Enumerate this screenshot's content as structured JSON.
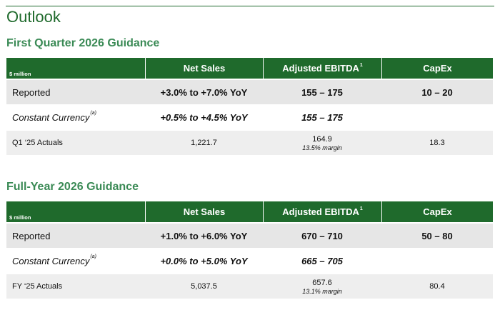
{
  "page": {
    "title": "Outlook"
  },
  "sections": [
    {
      "title": "First Quarter 2026 Guidance",
      "header": {
        "unit": "$ million",
        "net_sales": "Net Sales",
        "ebitda": "Adjusted EBITDA",
        "ebitda_sup": "1",
        "capex": "CapEx"
      },
      "reported": {
        "label": "Reported",
        "net_sales": "+3.0% to +7.0% YoY",
        "ebitda": "155 – 175",
        "capex": "10 – 20"
      },
      "constant": {
        "label": "Constant Currency",
        "label_sup": "(a)",
        "net_sales": "+0.5% to +4.5% YoY",
        "ebitda": "155 – 175",
        "capex": ""
      },
      "actuals": {
        "label": "Q1 ‘25 Actuals",
        "net_sales": "1,221.7",
        "ebitda": "164.9",
        "ebitda_margin": "13.5% margin",
        "capex": "18.3"
      }
    },
    {
      "title": "Full-Year 2026 Guidance",
      "header": {
        "unit": "$ million",
        "net_sales": "Net Sales",
        "ebitda": "Adjusted EBITDA",
        "ebitda_sup": "1",
        "capex": "CapEx"
      },
      "reported": {
        "label": "Reported",
        "net_sales": "+1.0% to +6.0% YoY",
        "ebitda": "670 – 710",
        "capex": "50 – 80"
      },
      "constant": {
        "label": "Constant Currency",
        "label_sup": "(a)",
        "net_sales": "+0.0% to +5.0% YoY",
        "ebitda": "665 – 705",
        "capex": ""
      },
      "actuals": {
        "label": "FY ‘25 Actuals",
        "net_sales": "5,037.5",
        "ebitda": "657.6",
        "ebitda_margin": "13.1% margin",
        "capex": "80.4"
      }
    }
  ]
}
